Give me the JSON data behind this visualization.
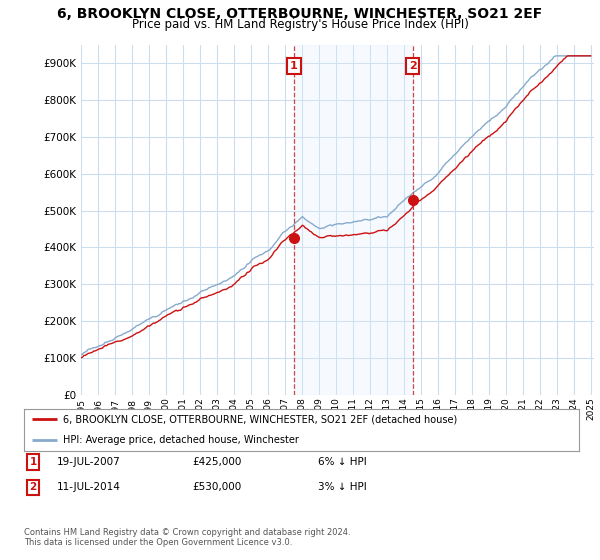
{
  "title": "6, BROOKLYN CLOSE, OTTERBOURNE, WINCHESTER, SO21 2EF",
  "subtitle": "Price paid vs. HM Land Registry's House Price Index (HPI)",
  "title_fontsize": 10,
  "subtitle_fontsize": 8.5,
  "ytick_values": [
    0,
    100000,
    200000,
    300000,
    400000,
    500000,
    600000,
    700000,
    800000,
    900000
  ],
  "ylim": [
    0,
    950000
  ],
  "background_color": "#ffffff",
  "plot_bg_color": "#ffffff",
  "grid_color": "#ccddee",
  "shade_color": "#ddeeff",
  "legend_label_red": "6, BROOKLYN CLOSE, OTTERBOURNE, WINCHESTER, SO21 2EF (detached house)",
  "legend_label_blue": "HPI: Average price, detached house, Winchester",
  "red_color": "#cc1111",
  "blue_color": "#88aacc",
  "marker1_date": 2007.54,
  "marker1_value": 425000,
  "marker1_label": "1",
  "marker2_date": 2014.53,
  "marker2_value": 530000,
  "marker2_label": "2",
  "annotation1": [
    "1",
    "19-JUL-2007",
    "£425,000",
    "6% ↓ HPI"
  ],
  "annotation2": [
    "2",
    "11-JUL-2014",
    "£530,000",
    "3% ↓ HPI"
  ],
  "footer": "Contains HM Land Registry data © Crown copyright and database right 2024.\nThis data is licensed under the Open Government Licence v3.0."
}
